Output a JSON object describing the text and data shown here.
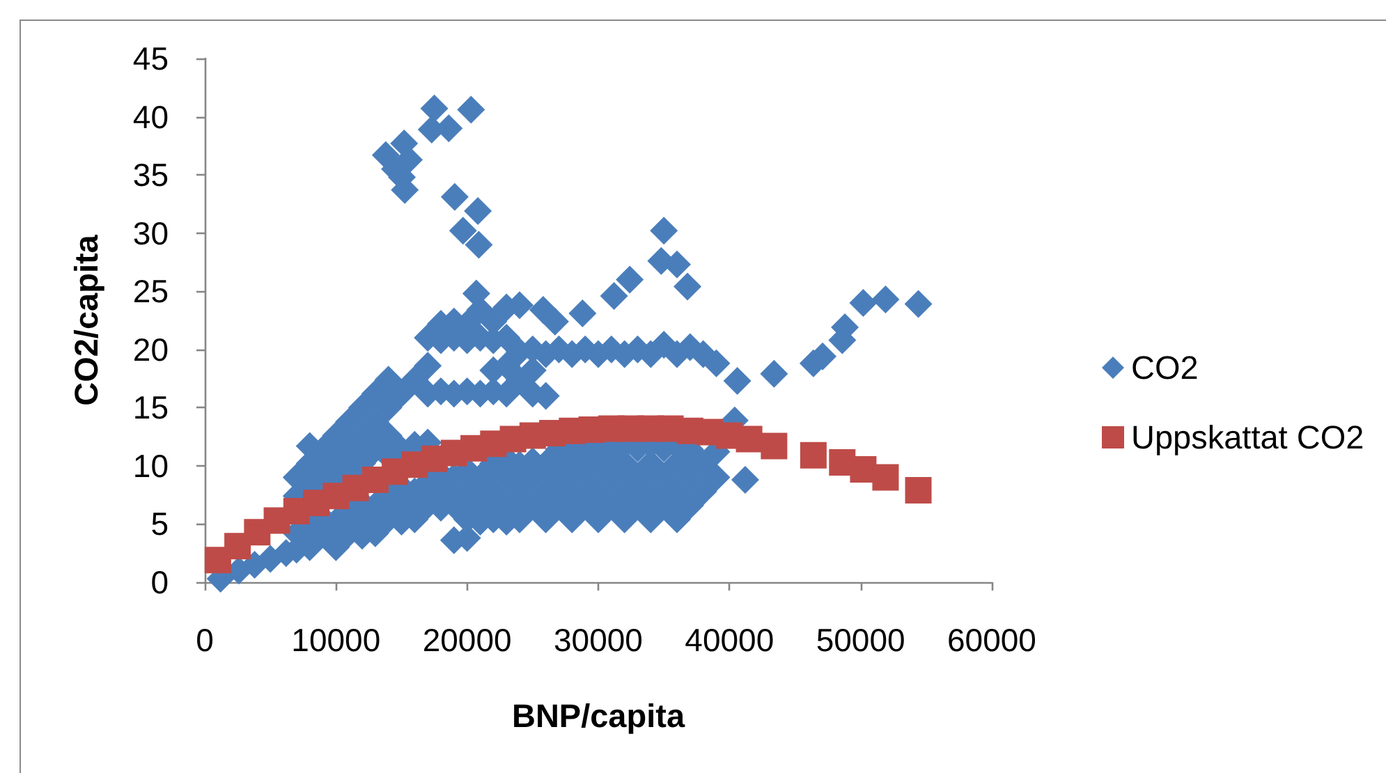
{
  "chart_data": {
    "type": "scatter",
    "xlabel": "BNP/capita",
    "ylabel": "CO2/capita",
    "xlim": [
      0,
      60000
    ],
    "xticks": [
      0,
      10000,
      20000,
      30000,
      40000,
      50000,
      60000
    ],
    "ylim": [
      0,
      45
    ],
    "yticks": [
      0,
      5,
      10,
      15,
      20,
      25,
      30,
      35,
      40,
      45
    ],
    "grid": false,
    "legend": "right",
    "series": [
      {
        "name": "CO2",
        "color": "#4a7ebb",
        "marker": "diamond",
        "x": [
          1200,
          2600,
          3800,
          5000,
          6200,
          7000,
          7000,
          7000,
          7000,
          8000,
          8000,
          8000,
          8000,
          8000,
          9000,
          9000,
          9000,
          9000,
          10000,
          10000,
          10000,
          10000,
          10000,
          11000,
          11000,
          11000,
          11000,
          11000,
          12000,
          12000,
          12000,
          12000,
          12000,
          12000,
          13000,
          13000,
          13000,
          13000,
          13000,
          14000,
          14000,
          14000,
          14000,
          14000,
          14000,
          15000,
          15000,
          15000,
          15000,
          15000,
          16000,
          16000,
          16000,
          16000,
          17000,
          17000,
          17000,
          17000,
          17000,
          17000,
          18000,
          18000,
          18000,
          18000,
          18000,
          18000,
          19000,
          19000,
          19000,
          19000,
          19000,
          19000,
          20000,
          20000,
          20000,
          20000,
          20000,
          20000,
          20000,
          21000,
          21000,
          21000,
          21000,
          21000,
          21000,
          22000,
          22000,
          22000,
          22000,
          22000,
          22000,
          22000,
          23000,
          23000,
          23000,
          23000,
          23000,
          23000,
          23000,
          24000,
          24000,
          24000,
          24000,
          24000,
          25000,
          25000,
          25000,
          25000,
          25000,
          25000,
          26000,
          26000,
          26000,
          26000,
          26000,
          27000,
          27000,
          27000,
          27000,
          28000,
          28000,
          28000,
          28000,
          28000,
          29000,
          29000,
          29000,
          29000,
          30000,
          30000,
          30000,
          30000,
          30000,
          31000,
          31000,
          31000,
          31000,
          32000,
          32000,
          32000,
          32000,
          32000,
          33000,
          33000,
          33000,
          33000,
          34000,
          34000,
          34000,
          34000,
          34000,
          35000,
          35000,
          35000,
          35000,
          36000,
          36000,
          36000,
          36000,
          36000,
          37000,
          37000,
          37000,
          37000,
          38000,
          38000,
          38000,
          39000,
          39000,
          39000,
          20700,
          23000,
          24000,
          25800,
          26700,
          28800,
          31200,
          32400,
          34800,
          35000,
          36000,
          36800,
          40400,
          40600,
          41200,
          43400,
          46400,
          47100,
          48600,
          48800,
          50200,
          51900,
          54400,
          17500,
          17300,
          18600,
          20300,
          13800,
          15200,
          15560,
          14500,
          15030,
          15250,
          19055,
          20820,
          19690,
          20890
        ],
        "values": [
          0.3,
          1.0,
          1.5,
          2.0,
          2.5,
          2.8,
          4.2,
          7.4,
          9.0,
          3.0,
          4.6,
          8.1,
          10.2,
          11.7,
          4.2,
          5.5,
          9.0,
          11.4,
          3.0,
          5.2,
          8.7,
          10.2,
          12.6,
          4.2,
          6.1,
          9.4,
          11.4,
          13.8,
          4.0,
          5.4,
          6.8,
          10.2,
          12.6,
          15.0,
          4.2,
          6.6,
          11.4,
          13.8,
          16.2,
          5.4,
          7.5,
          10.8,
          12.6,
          15.0,
          17.4,
          5.2,
          6.6,
          8.2,
          11.4,
          16.2,
          5.4,
          7.8,
          11.8,
          17.4,
          6.6,
          8.6,
          12.0,
          16.2,
          18.6,
          21.0,
          6.4,
          7.8,
          9.3,
          16.4,
          20.8,
          22.2,
          3.6,
          6.6,
          9.0,
          16.2,
          21.0,
          22.4,
          3.8,
          5.4,
          7.8,
          9.6,
          16.4,
          20.8,
          22.2,
          5.2,
          6.6,
          9.0,
          16.2,
          21.0,
          23.4,
          5.4,
          7.8,
          10.2,
          16.4,
          18.2,
          20.8,
          22.4,
          5.2,
          6.6,
          9.0,
          10.6,
          16.2,
          18.6,
          21.0,
          5.4,
          7.8,
          10.1,
          17.4,
          19.8,
          6.6,
          9.0,
          10.4,
          16.2,
          18.2,
          20.0,
          5.4,
          7.8,
          10.2,
          16.0,
          19.6,
          6.6,
          9.0,
          11.4,
          20.0,
          5.4,
          7.8,
          10.2,
          11.6,
          19.6,
          6.6,
          9.0,
          11.4,
          20.0,
          5.4,
          7.8,
          10.2,
          11.8,
          19.6,
          6.6,
          9.0,
          11.4,
          20.0,
          5.4,
          7.8,
          10.2,
          11.8,
          19.6,
          6.6,
          9.0,
          11.5,
          20.0,
          5.4,
          7.8,
          10.2,
          11.8,
          19.6,
          6.6,
          9.0,
          11.5,
          20.4,
          5.4,
          7.8,
          10.2,
          11.7,
          19.6,
          6.6,
          9.0,
          11.4,
          20.2,
          7.8,
          10.2,
          19.6,
          9.0,
          11.2,
          18.8,
          24.8,
          23.6,
          23.8,
          23.4,
          22.4,
          23.1,
          24.6,
          26.0,
          27.6,
          30.2,
          27.3,
          25.4,
          13.9,
          17.3,
          8.8,
          17.9,
          18.8,
          19.4,
          20.8,
          21.9,
          24.0,
          24.3,
          23.9,
          40.7,
          38.9,
          39.0,
          40.6,
          36.7,
          37.7,
          36.3,
          35.5,
          34.8,
          33.7,
          33.1,
          31.9,
          30.2,
          29.0
        ]
      },
      {
        "name": "Uppskattat CO2",
        "color": "#be4b48",
        "marker": "square",
        "x": [
          1000,
          2500,
          4000,
          5500,
          7000,
          8500,
          10000,
          11500,
          13000,
          14500,
          16000,
          17500,
          19000,
          20500,
          22000,
          23500,
          25000,
          26500,
          28000,
          29500,
          31000,
          32500,
          34000,
          35500,
          37000,
          38500,
          40000,
          41500,
          43400,
          46400,
          48600,
          50200,
          51900,
          54400
        ],
        "values": [
          1.9,
          3.1,
          4.3,
          5.3,
          6.1,
          6.8,
          7.4,
          8.1,
          8.8,
          9.5,
          10.1,
          10.6,
          11.1,
          11.5,
          11.9,
          12.3,
          12.6,
          12.8,
          13.0,
          13.1,
          13.2,
          13.2,
          13.2,
          13.2,
          13.0,
          12.9,
          12.6,
          12.3,
          11.7,
          10.9,
          10.3,
          9.7,
          9.0,
          7.9
        ]
      }
    ]
  }
}
